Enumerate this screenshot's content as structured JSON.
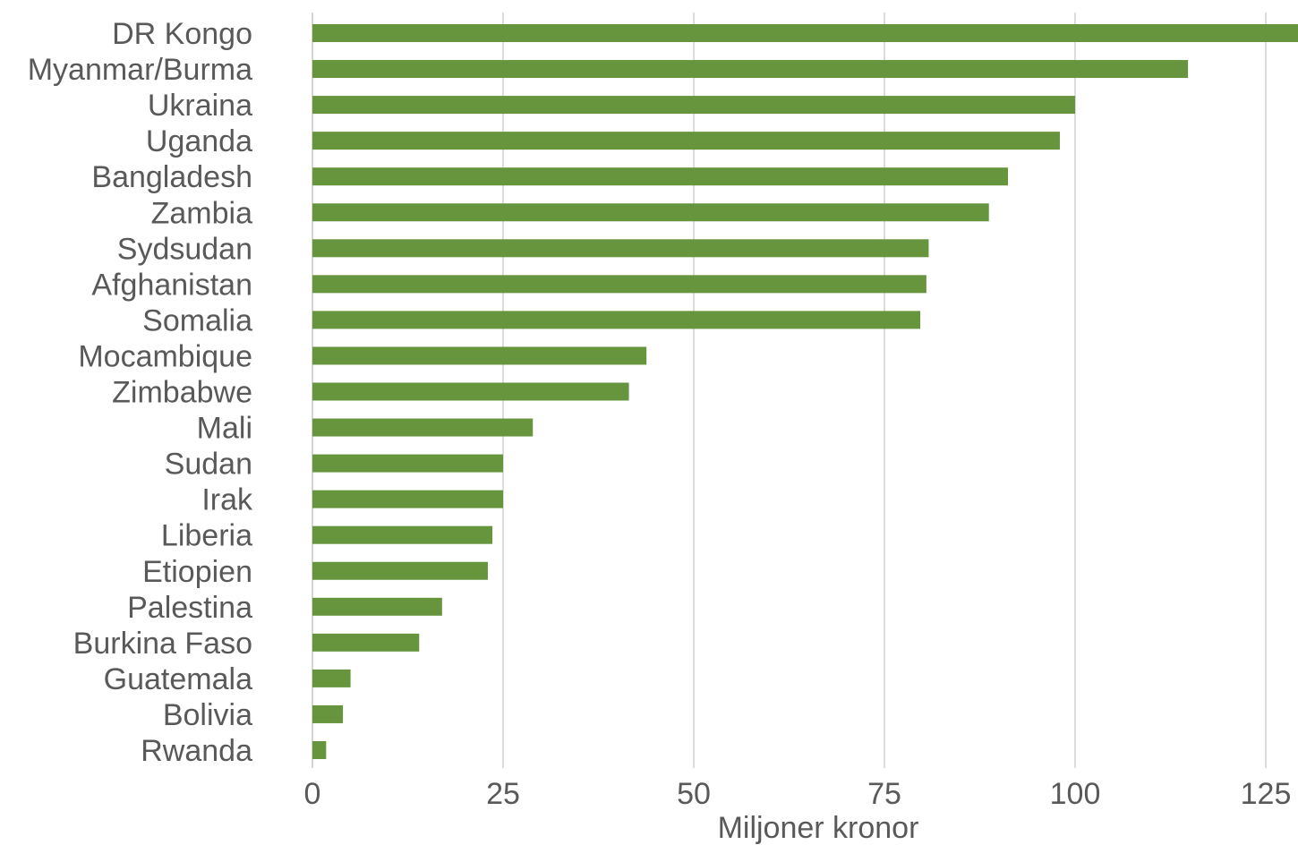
{
  "chart_data": {
    "type": "bar",
    "orientation": "horizontal",
    "categories": [
      "DR Kongo",
      "Myanmar/Burma",
      "Ukraina",
      "Uganda",
      "Bangladesh",
      "Zambia",
      "Sydsudan",
      "Afghanistan",
      "Somalia",
      "Mocambique",
      "Zimbabwe",
      "Mali",
      "Sudan",
      "Irak",
      "Liberia",
      "Etiopien",
      "Palestina",
      "Burkina Faso",
      "Guatemala",
      "Bolivia",
      "Rwanda"
    ],
    "values": [
      130,
      114.8,
      100,
      98,
      91.2,
      88.7,
      80.8,
      80.5,
      79.7,
      43.8,
      41.5,
      28.9,
      25,
      25,
      23.6,
      23,
      17,
      14,
      5,
      4,
      1.8
    ],
    "xlabel": "Miljoner kronor",
    "ylabel": "",
    "xlim": [
      0,
      130
    ],
    "xticks": [
      0,
      25,
      50,
      75,
      100,
      125
    ],
    "xtick_labels": [
      "0",
      "25",
      "50",
      "75",
      "100",
      "125"
    ],
    "grid": "vertical",
    "legend": "none",
    "bar_color": "#66953d"
  }
}
